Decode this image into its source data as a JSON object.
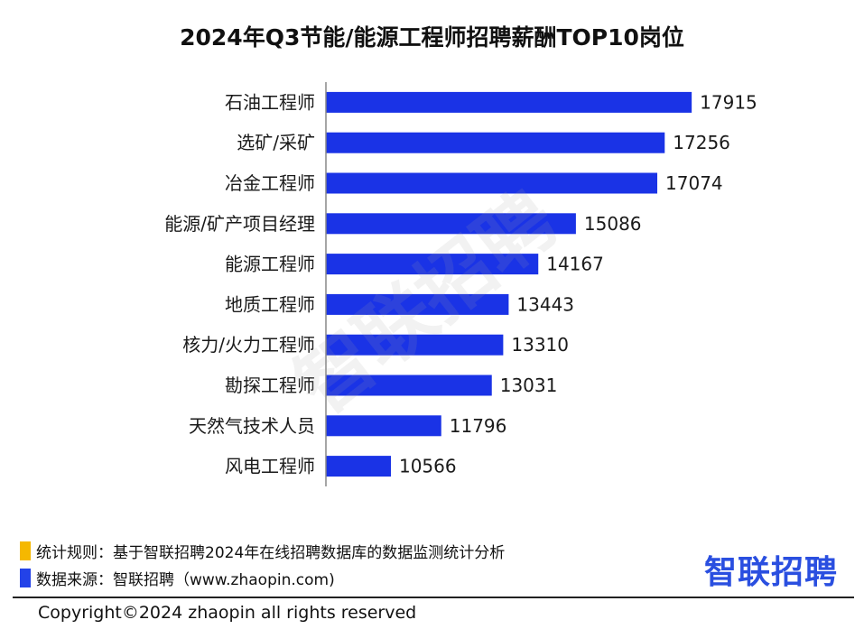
{
  "chart_data": {
    "type": "bar",
    "orientation": "horizontal",
    "title": "2024年Q3节能/能源工程师招聘薪酬TOP10岗位",
    "categories": [
      "石油工程师",
      "选矿/采矿",
      "冶金工程师",
      "能源/矿产项目经理",
      "能源工程师",
      "地质工程师",
      "核力/火力工程师",
      "勘探工程师",
      "天然气技术人员",
      "风电工程师"
    ],
    "values": [
      17915,
      17256,
      17074,
      15086,
      14167,
      13443,
      13310,
      13031,
      11796,
      10566
    ],
    "xlim": [
      9000,
      18000
    ],
    "bar_color": "#1a33e6",
    "grid": false,
    "legend": "none"
  },
  "watermark": "智联招聘",
  "notes": [
    {
      "text": "统计规则：基于智联招聘2024年在线招聘数据库的数据监测统计分析",
      "color": "#f5b800"
    },
    {
      "text": "数据来源：智联招聘（www.zhaopin.com)",
      "color": "#2342e8"
    }
  ],
  "logo": "智联招聘",
  "copyright": "Copyright©2024 zhaopin all rights reserved"
}
